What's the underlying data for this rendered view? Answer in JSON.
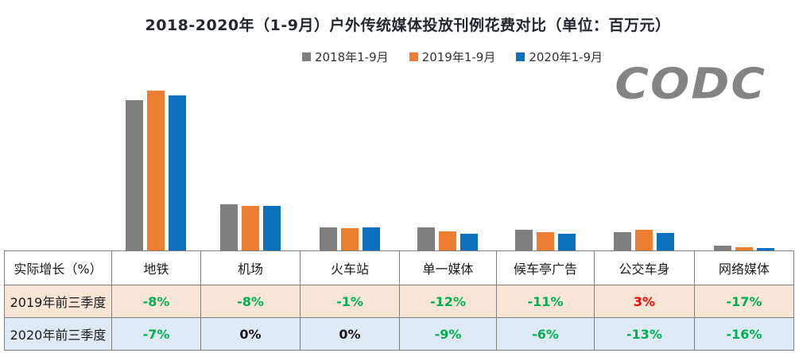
{
  "logo": "CODC",
  "colors": {
    "series_2018": "#7f7f7f",
    "series_2019": "#ed7d31",
    "series_2020": "#0c71bd",
    "negative_green": "#00b050",
    "positive_red": "#ff0000",
    "text_black": "#1a1a1a",
    "row_2019_bg": "#fbe5d6",
    "row_2020_bg": "#deebf7",
    "table_border": "#7f7f7f",
    "logo_gray": "#848484"
  },
  "chart_data": {
    "type": "bar",
    "title": "2018-2020年（1-9月）户外传统媒体投放刊例花费对比（单位：百万元）",
    "unit": "百万元",
    "xlabel": "",
    "ylabel": "",
    "axis_labels_shown": false,
    "legend_position": "top",
    "value_note": "纵轴无刻度标注，数值为按像素估算的相对值（最高柱=100）",
    "categories": [
      "地铁",
      "机场",
      "火车站",
      "单一媒体",
      "候车亭广告",
      "公交车身",
      "网络媒体"
    ],
    "series": [
      {
        "name": "2018年1-9月",
        "color": "#7f7f7f",
        "values": [
          94,
          29,
          14.5,
          14.5,
          13,
          11.5,
          3
        ]
      },
      {
        "name": "2019年1-9月",
        "color": "#ed7d31",
        "values": [
          100,
          28,
          14,
          12,
          11.5,
          13,
          2
        ]
      },
      {
        "name": "2020年1-9月",
        "color": "#0c71bd",
        "values": [
          97,
          28,
          14.5,
          10.5,
          10.5,
          11,
          1.5
        ]
      }
    ]
  },
  "table": {
    "corner_label": "实际增长（%）",
    "columns": [
      "地铁",
      "机场",
      "火车站",
      "单一媒体",
      "候车亭广告",
      "公交车身",
      "网络媒体"
    ],
    "rows": [
      {
        "label": "2019年前三季度",
        "values": [
          "-8%",
          "-8%",
          "-1%",
          "-12%",
          "-11%",
          "3%",
          "-17%"
        ],
        "value_colors": [
          "green",
          "green",
          "green",
          "green",
          "green",
          "red",
          "green"
        ]
      },
      {
        "label": "2020年前三季度",
        "values": [
          "-7%",
          "0%",
          "0%",
          "-9%",
          "-6%",
          "-13%",
          "-16%"
        ],
        "value_colors": [
          "green",
          "black",
          "black",
          "green",
          "green",
          "green",
          "green"
        ]
      }
    ]
  }
}
